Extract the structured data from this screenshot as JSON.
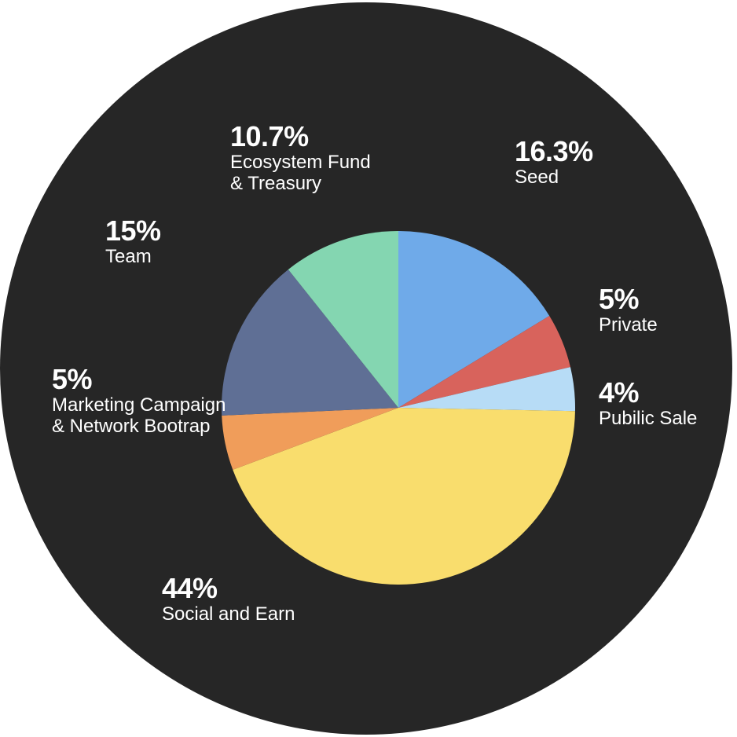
{
  "colors": {
    "background_disc": "#262626",
    "text": "#ffffff"
  },
  "chart_data": {
    "type": "pie",
    "title": "",
    "slices": [
      {
        "key": "seed",
        "value": 16.3,
        "value_label": "16.3%",
        "label_lines": [
          "Seed"
        ],
        "color": "#6faae9"
      },
      {
        "key": "private",
        "value": 5,
        "value_label": "5%",
        "label_lines": [
          "Private"
        ],
        "color": "#d8635c"
      },
      {
        "key": "public-sale",
        "value": 4,
        "value_label": "4%",
        "label_lines": [
          "Pubilic Sale"
        ],
        "color": "#b7dcf6"
      },
      {
        "key": "social-and-earn",
        "value": 44,
        "value_label": "44%",
        "label_lines": [
          "Social and Earn"
        ],
        "color": "#f9dd6d"
      },
      {
        "key": "marketing",
        "value": 5,
        "value_label": "5%",
        "label_lines": [
          "Marketing Campaign",
          "& Network Bootrap"
        ],
        "color": "#f09d5a"
      },
      {
        "key": "team",
        "value": 15,
        "value_label": "15%",
        "label_lines": [
          "Team"
        ],
        "color": "#5f6f95"
      },
      {
        "key": "ecosystem",
        "value": 10.7,
        "value_label": "10.7%",
        "label_lines": [
          "Ecosystem Fund",
          "& Treasury"
        ],
        "color": "#84d6b1"
      }
    ],
    "start_angle_deg": 0,
    "direction": "clockwise",
    "legend": "none",
    "labels_placement": "around-pie"
  }
}
